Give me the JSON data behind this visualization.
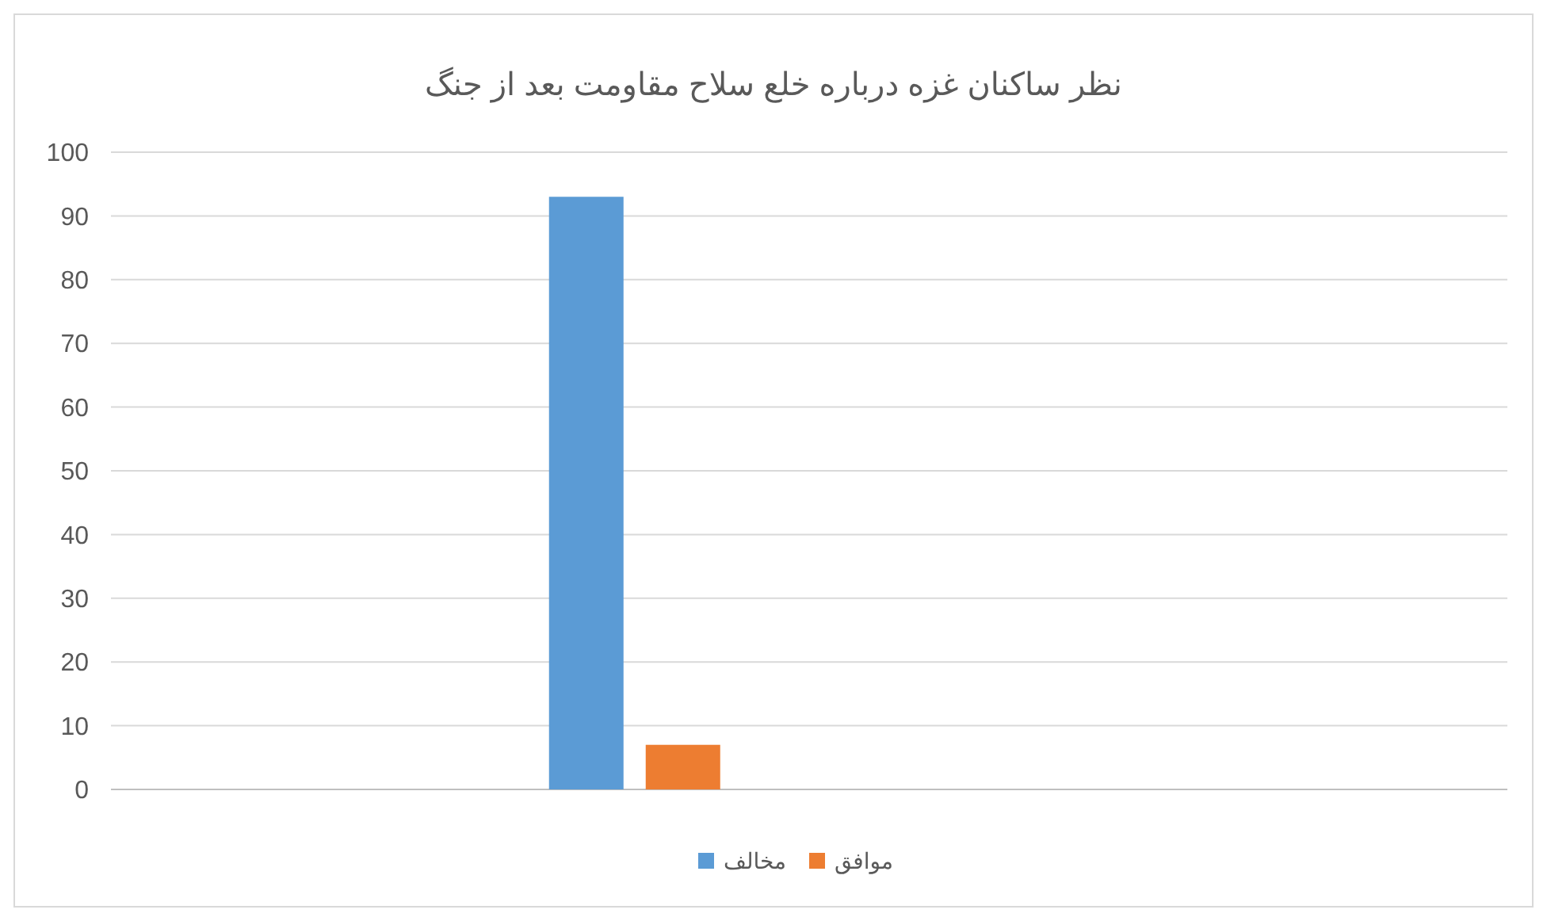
{
  "chart_data": {
    "type": "bar",
    "title": "نظر ساکنان غزه درباره خلع سلاح مقاومت بعد از جنگ",
    "categories": [
      null,
      null,
      null,
      null
    ],
    "series": [
      {
        "name": "مخالف",
        "color": "#5b9bd5",
        "values": [
          null,
          93,
          null,
          null
        ]
      },
      {
        "name": "موافق",
        "color": "#ed7d31",
        "values": [
          null,
          7,
          null,
          null
        ]
      }
    ],
    "ylim": [
      0,
      100
    ],
    "yticks": [
      0,
      10,
      20,
      30,
      40,
      50,
      60,
      70,
      80,
      90,
      100
    ],
    "grid": "y",
    "legend": "bottom"
  }
}
